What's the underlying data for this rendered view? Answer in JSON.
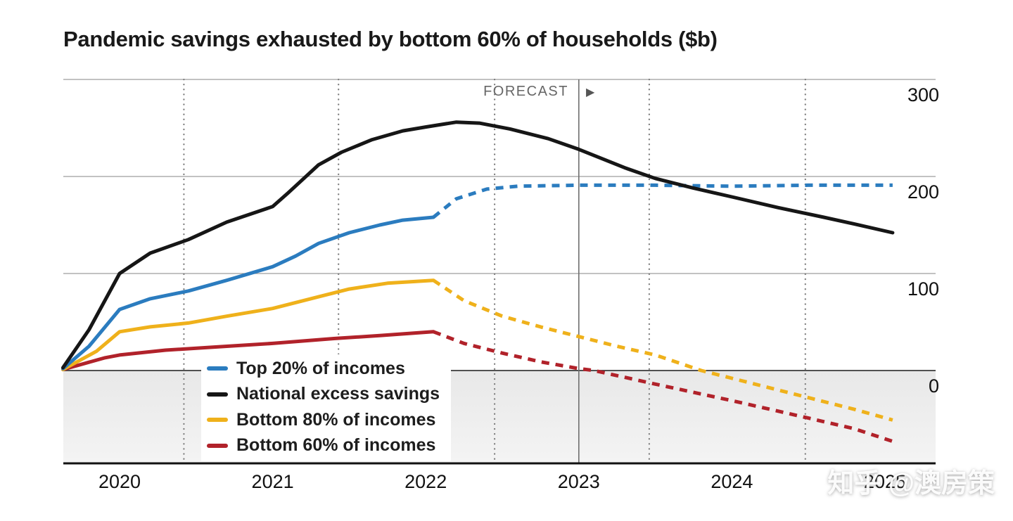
{
  "title": "Pandemic savings exhausted by bottom 60% of households ($b)",
  "forecast": {
    "label": "FORECAST",
    "arrow": "▶"
  },
  "watermark": "知乎 @澳房策",
  "chart_data": {
    "type": "line",
    "title": "Pandemic savings exhausted by bottom 60% of households ($b)",
    "unit": "$b",
    "legend_position": "bottom-left",
    "grid": true,
    "x_axis": {
      "ticks": [
        2020,
        2021,
        2022,
        2023,
        2024,
        2025
      ],
      "tick_labels": [
        "2020",
        "2021",
        "2022",
        "2023",
        "2024",
        "2025"
      ],
      "range": [
        2019.63,
        2025.33
      ]
    },
    "y_axis": {
      "ticks": [
        300,
        200,
        100,
        0
      ],
      "tick_labels": [
        "300",
        "200",
        "100",
        "0"
      ],
      "range": [
        -96,
        300
      ],
      "gridlines": [
        300,
        200,
        100
      ],
      "zero_line": 0
    },
    "forecast_divider_x": 2023,
    "dotted_gridlines_x": [
      2020.42,
      2021.43,
      2022.45,
      2023.46,
      2024.48
    ],
    "series": [
      {
        "name": "Top 20% of incomes",
        "color": "#2b7cbf",
        "solid": [
          [
            2019.63,
            2
          ],
          [
            2019.8,
            25
          ],
          [
            2020.0,
            63
          ],
          [
            2020.2,
            74
          ],
          [
            2020.45,
            82
          ],
          [
            2020.7,
            93
          ],
          [
            2021.0,
            107
          ],
          [
            2021.15,
            118
          ],
          [
            2021.3,
            131
          ],
          [
            2021.5,
            142
          ],
          [
            2021.7,
            150
          ],
          [
            2021.85,
            155
          ],
          [
            2022.05,
            158
          ]
        ],
        "dashed": [
          [
            2022.05,
            158
          ],
          [
            2022.2,
            177
          ],
          [
            2022.4,
            187
          ],
          [
            2022.6,
            190
          ],
          [
            2023.0,
            191
          ],
          [
            2023.5,
            191
          ],
          [
            2024.0,
            190
          ],
          [
            2024.5,
            191
          ],
          [
            2025.05,
            191
          ]
        ]
      },
      {
        "name": "National excess savings",
        "color": "#161616",
        "solid": [
          [
            2019.63,
            3
          ],
          [
            2019.8,
            42
          ],
          [
            2020.0,
            100
          ],
          [
            2020.2,
            121
          ],
          [
            2020.45,
            135
          ],
          [
            2020.7,
            153
          ],
          [
            2021.0,
            169
          ],
          [
            2021.1,
            183
          ],
          [
            2021.3,
            212
          ],
          [
            2021.45,
            225
          ],
          [
            2021.65,
            238
          ],
          [
            2021.85,
            247
          ],
          [
            2022.0,
            251
          ],
          [
            2022.2,
            256
          ],
          [
            2022.35,
            255
          ],
          [
            2022.55,
            249
          ],
          [
            2022.8,
            239
          ],
          [
            2023.0,
            228
          ],
          [
            2023.3,
            209
          ],
          [
            2023.5,
            198
          ],
          [
            2023.75,
            188
          ],
          [
            2024.0,
            179
          ],
          [
            2024.3,
            168
          ],
          [
            2024.6,
            158
          ],
          [
            2024.8,
            151
          ],
          [
            2025.05,
            142
          ]
        ],
        "dashed": []
      },
      {
        "name": "Bottom 80% of incomes",
        "color": "#efb11b",
        "solid": [
          [
            2019.63,
            1
          ],
          [
            2019.85,
            20
          ],
          [
            2020.0,
            40
          ],
          [
            2020.2,
            45
          ],
          [
            2020.45,
            49
          ],
          [
            2020.7,
            56
          ],
          [
            2021.0,
            64
          ],
          [
            2021.3,
            76
          ],
          [
            2021.5,
            84
          ],
          [
            2021.75,
            90
          ],
          [
            2022.05,
            93
          ]
        ],
        "dashed": [
          [
            2022.05,
            93
          ],
          [
            2022.25,
            72
          ],
          [
            2022.5,
            56
          ],
          [
            2022.75,
            45
          ],
          [
            2023.0,
            35
          ],
          [
            2023.25,
            25
          ],
          [
            2023.5,
            16
          ],
          [
            2023.8,
            0
          ],
          [
            2024.0,
            -8
          ],
          [
            2024.5,
            -28
          ],
          [
            2024.8,
            -40
          ],
          [
            2025.05,
            -51
          ]
        ]
      },
      {
        "name": "Bottom 60% of incomes",
        "color": "#b1222a",
        "solid": [
          [
            2019.63,
            1
          ],
          [
            2019.9,
            13
          ],
          [
            2020.0,
            16
          ],
          [
            2020.3,
            21
          ],
          [
            2020.6,
            24
          ],
          [
            2021.0,
            28
          ],
          [
            2021.4,
            33
          ],
          [
            2021.7,
            36
          ],
          [
            2022.05,
            40
          ]
        ],
        "dashed": [
          [
            2022.05,
            40
          ],
          [
            2022.25,
            28
          ],
          [
            2022.5,
            18
          ],
          [
            2022.75,
            9
          ],
          [
            2023.0,
            2
          ],
          [
            2023.1,
            0
          ],
          [
            2023.5,
            -14
          ],
          [
            2024.0,
            -31
          ],
          [
            2024.5,
            -49
          ],
          [
            2024.8,
            -60
          ],
          [
            2025.05,
            -73
          ]
        ]
      }
    ]
  }
}
